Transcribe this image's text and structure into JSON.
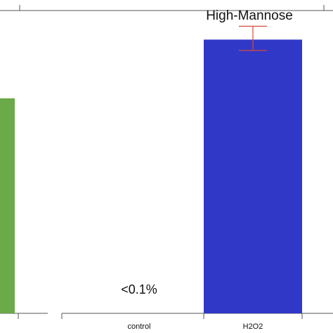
{
  "chart_data": {
    "type": "bar",
    "title": "High-Mannose",
    "categories": [
      "",
      "control",
      "H2O2"
    ],
    "series": [
      {
        "values": [
          null,
          0,
          45.2
        ],
        "colors": [
          "#6aaa48",
          "#ffffff",
          "#3038c8"
        ]
      }
    ],
    "partial_bar": {
      "category": "",
      "value": 35.5,
      "color": "#6aaa48"
    },
    "error_bars": {
      "H2O2": [
        43.4,
        47.4
      ],
      "color": "#d84a3a"
    },
    "annotation": {
      "text": "<0.1%",
      "category": "control"
    },
    "ylim": [
      0,
      50
    ],
    "grid": false,
    "legend": "none"
  }
}
